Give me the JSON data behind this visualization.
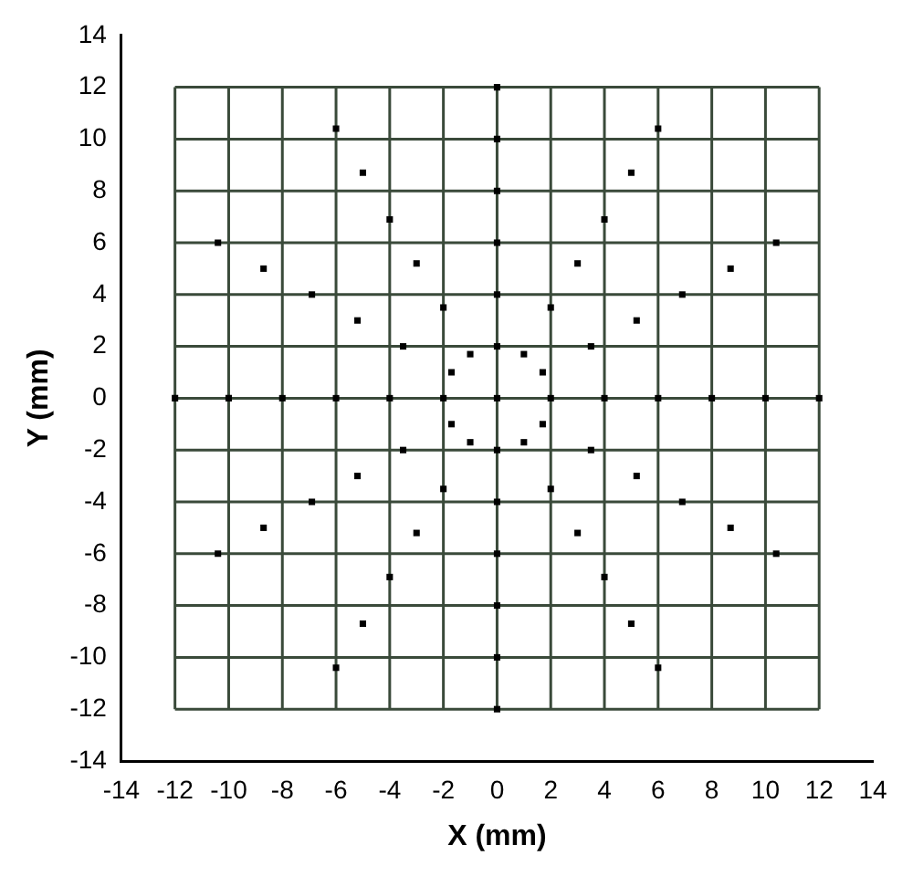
{
  "chart_data": {
    "type": "scatter",
    "xlabel": "X (mm)",
    "ylabel": "Y (mm)",
    "marker": "square",
    "grid": true,
    "legend": false,
    "xlim": [
      -14,
      14
    ],
    "xticks": [
      -14,
      -12,
      -10,
      -8,
      -6,
      -4,
      -2,
      0,
      2,
      4,
      6,
      8,
      10,
      12,
      14
    ],
    "ylim": [
      -14,
      14
    ],
    "yticks": [
      -14,
      -12,
      -10,
      -8,
      -6,
      -4,
      -2,
      0,
      2,
      4,
      6,
      8,
      10,
      12,
      14
    ],
    "series": [
      {
        "color": "#000000",
        "x": [
          0,
          2,
          4,
          6,
          8,
          10,
          12,
          1.7,
          3.5,
          5.2,
          6.9,
          8.7,
          10.4,
          1,
          2,
          3,
          4,
          5,
          6,
          0,
          0,
          0,
          0,
          0,
          0,
          -1,
          -2,
          -3,
          -4,
          -5,
          -6,
          -1.7,
          -3.5,
          -5.2,
          -6.9,
          -8.7,
          -10.4,
          -2,
          -4,
          -6,
          -8,
          -10,
          -12,
          -1.7,
          -3.5,
          -5.2,
          -6.9,
          -8.7,
          -10.4,
          -1,
          -2,
          -3,
          -4,
          -5,
          -6,
          0,
          0,
          0,
          0,
          0,
          0,
          1,
          2,
          3,
          4,
          5,
          6,
          1.7,
          3.5,
          5.2,
          6.9,
          8.7,
          10.4
        ],
        "values": [
          0,
          0,
          0,
          0,
          0,
          0,
          0,
          1,
          2,
          3,
          4,
          5,
          6,
          1.7,
          3.5,
          5.2,
          6.9,
          8.7,
          10.4,
          2,
          4,
          6,
          8,
          10,
          12,
          1.7,
          3.5,
          5.2,
          6.9,
          8.7,
          10.4,
          1,
          2,
          3,
          4,
          5,
          6,
          0,
          0,
          0,
          0,
          0,
          0,
          -1,
          -2,
          -3,
          -4,
          -5,
          -6,
          -1.7,
          -3.5,
          -5.2,
          -6.9,
          -8.7,
          -10.4,
          -2,
          -4,
          -6,
          -8,
          -10,
          -12,
          -1.7,
          -3.5,
          -5.2,
          -6.9,
          -8.7,
          -10.4,
          -1,
          -2,
          -3,
          -4,
          -5,
          -6
        ]
      }
    ]
  }
}
